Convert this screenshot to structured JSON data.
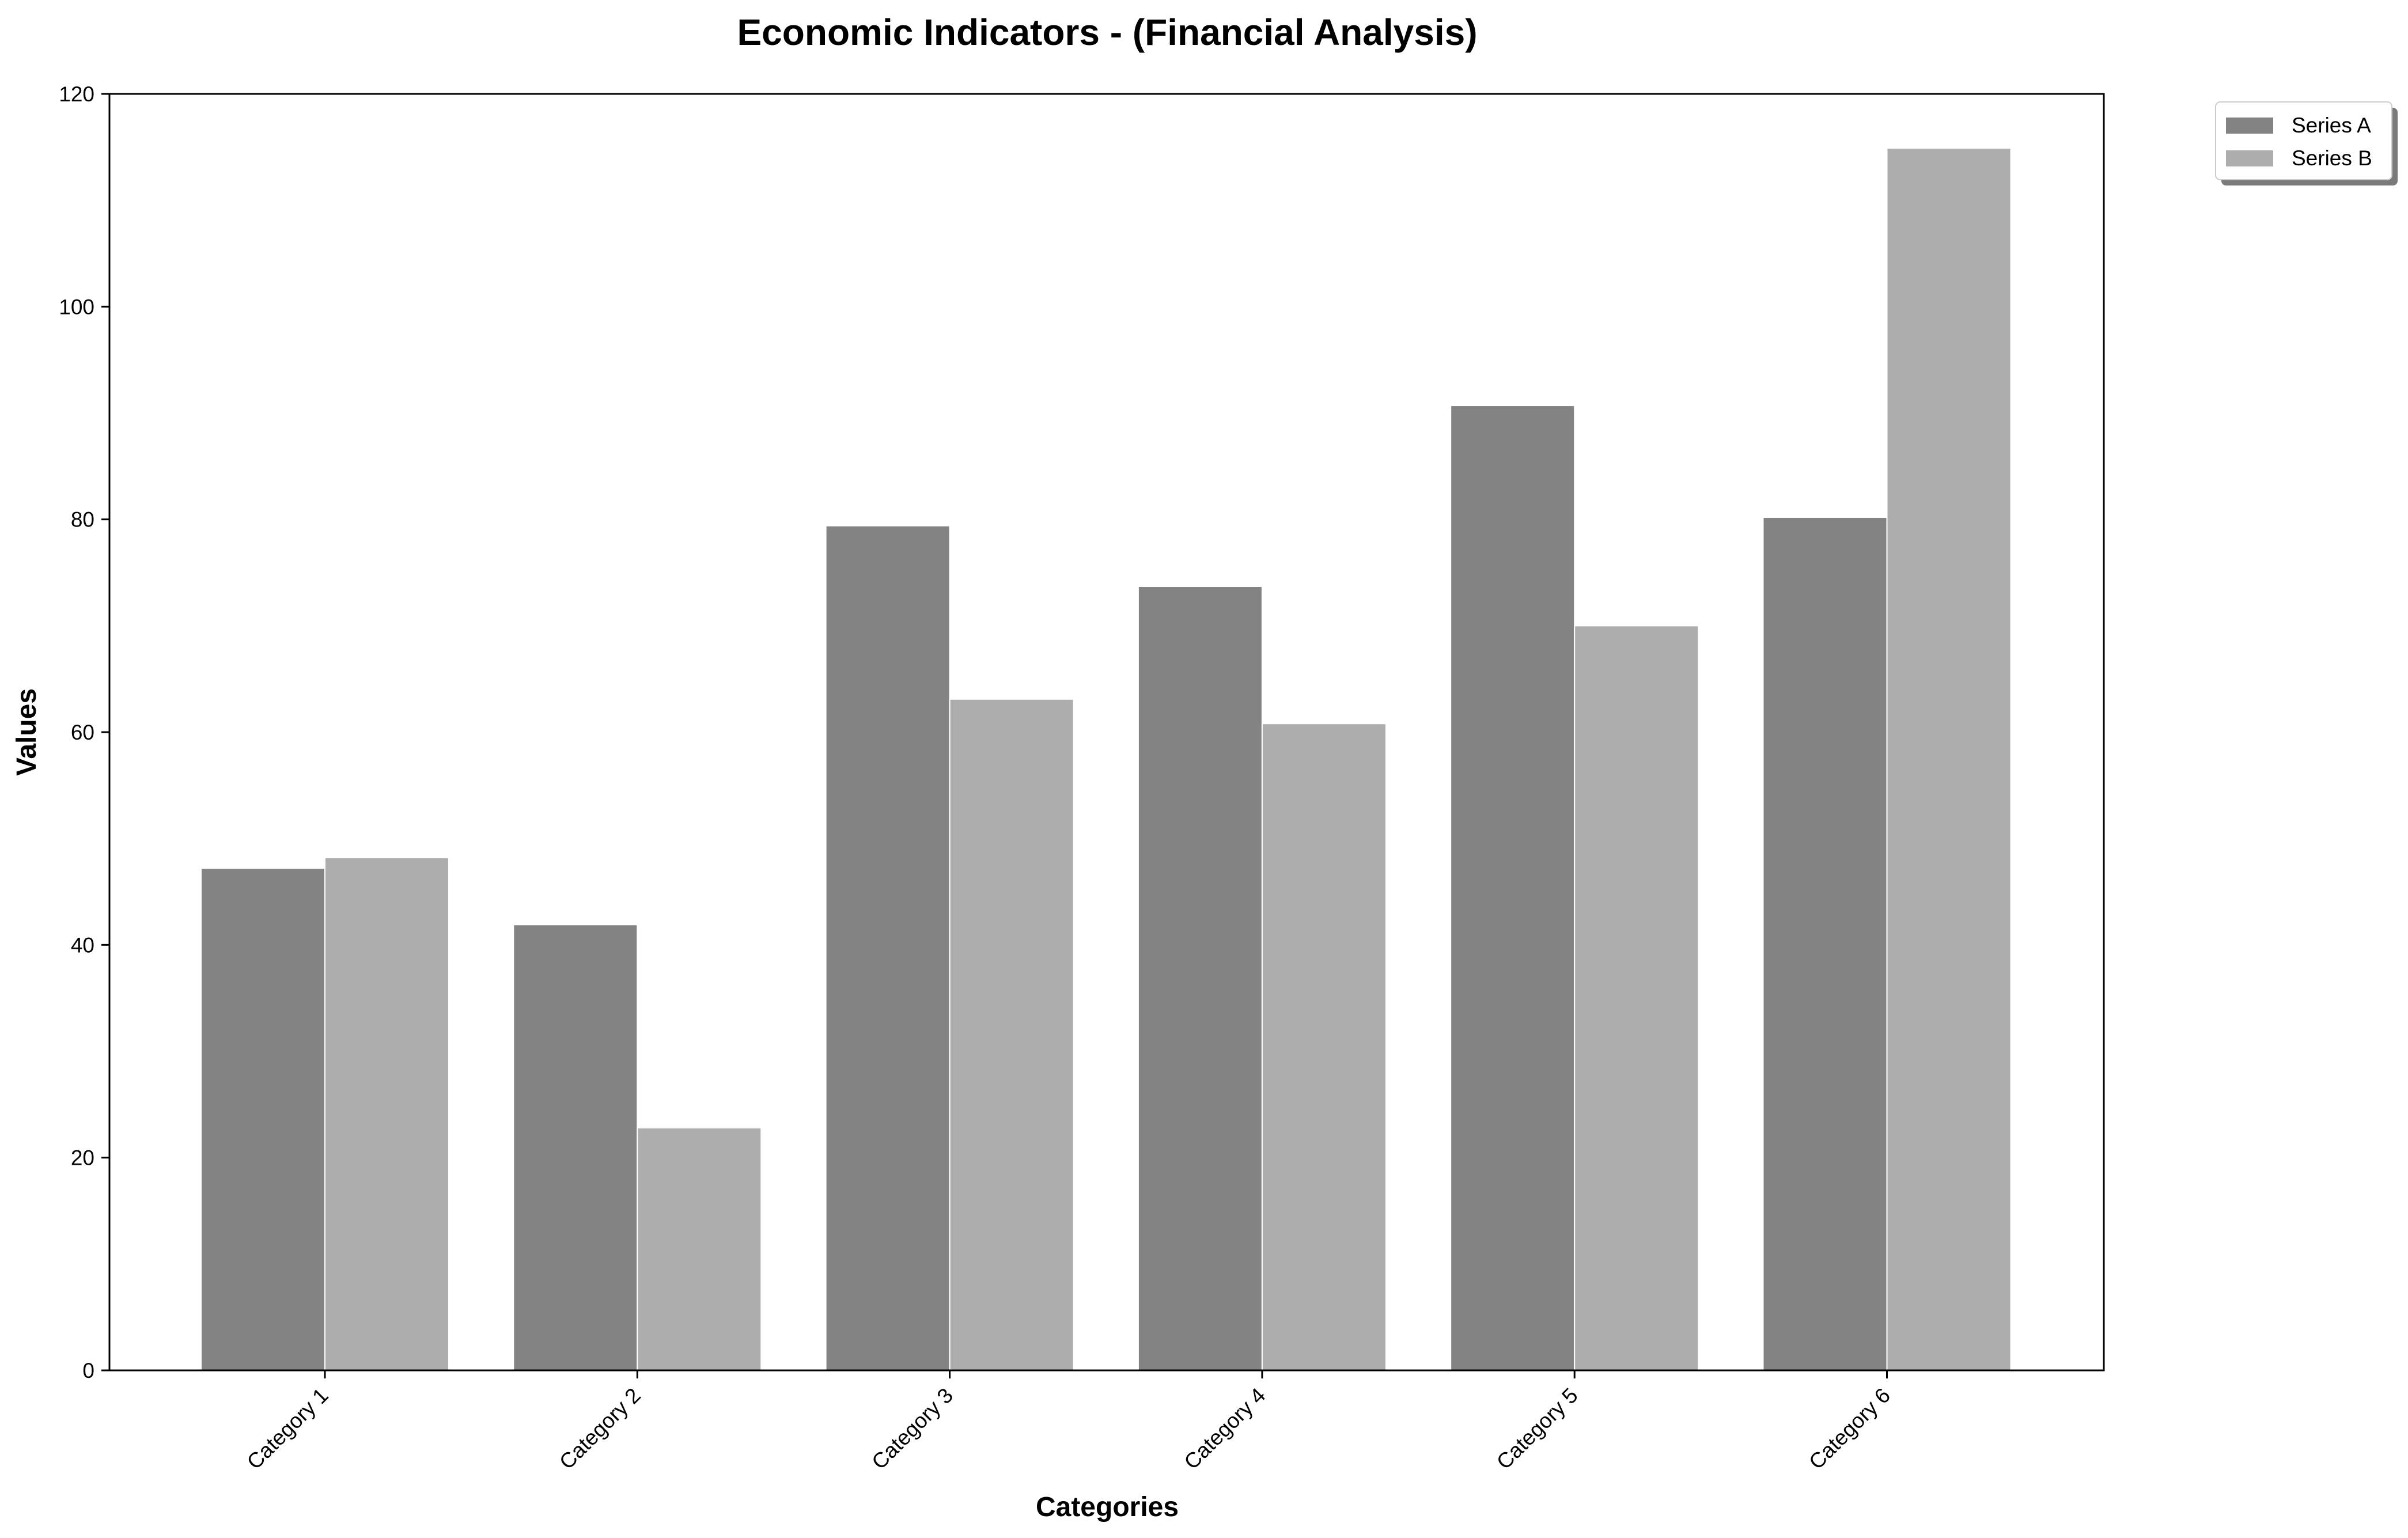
{
  "chart_data": {
    "type": "bar",
    "title": "Economic Indicators - (Financial Analysis)",
    "xlabel": "Categories",
    "ylabel": "Values",
    "categories": [
      "Category 1",
      "Category 2",
      "Category 3",
      "Category 4",
      "Category 5",
      "Category 6"
    ],
    "series": [
      {
        "name": "Series A",
        "color": "#838383",
        "values": [
          47.2,
          41.9,
          79.4,
          73.7,
          90.7,
          80.2
        ]
      },
      {
        "name": "Series B",
        "color": "#adadad",
        "values": [
          48.2,
          22.8,
          63.1,
          60.8,
          70.0,
          114.9
        ]
      }
    ],
    "ylim": [
      0,
      120
    ],
    "yticks": [
      "0",
      "20",
      "40",
      "60",
      "80",
      "100",
      "120"
    ],
    "grid": false,
    "legend_position": "outside top-right"
  }
}
